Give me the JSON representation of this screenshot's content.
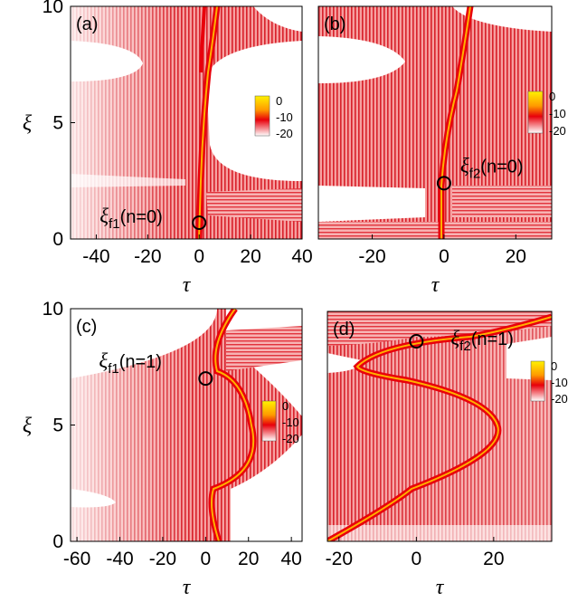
{
  "chart_data": [
    {
      "panel_label": "(a)",
      "type": "heatmap",
      "xlabel": "τ",
      "ylabel": "ξ",
      "xlim": [
        -50,
        40
      ],
      "ylim": [
        0,
        10
      ],
      "xticks": [
        -40,
        -20,
        0,
        20,
        40
      ],
      "yticks": [
        0,
        5,
        10
      ],
      "colorbar": {
        "ticks": [
          0,
          -10,
          -20
        ]
      },
      "annotation": {
        "symbol": "ξ",
        "subscript": "f1",
        "text": "(n=0)",
        "point": {
          "tau": 0,
          "xi": 0.7
        }
      }
    },
    {
      "panel_label": "(b)",
      "type": "heatmap",
      "xlabel": "τ",
      "ylabel": "",
      "xlim": [
        -35,
        30
      ],
      "ylim": [
        0,
        10
      ],
      "xticks": [
        -20,
        0,
        20
      ],
      "yticks": [],
      "colorbar": {
        "ticks": [
          0,
          -10,
          -20
        ]
      },
      "annotation": {
        "symbol": "ξ",
        "subscript": "f2",
        "text": "(n=0)",
        "point": {
          "tau": 0,
          "xi": 2.4
        }
      }
    },
    {
      "panel_label": "(c)",
      "type": "heatmap",
      "xlabel": "τ",
      "ylabel": "ξ",
      "xlim": [
        -63,
        45
      ],
      "ylim": [
        0,
        10
      ],
      "xticks": [
        -60,
        -40,
        -20,
        0,
        20,
        40
      ],
      "yticks": [
        0,
        5,
        10
      ],
      "colorbar": {
        "ticks": [
          0,
          -10,
          -20
        ]
      },
      "annotation": {
        "symbol": "ξ",
        "subscript": "f1",
        "text": "(n=1)",
        "point": {
          "tau": 0,
          "xi": 7.0
        }
      }
    },
    {
      "panel_label": "(d)",
      "type": "heatmap",
      "xlabel": "τ",
      "ylabel": "",
      "xlim": [
        -23,
        35
      ],
      "ylim": [
        0,
        10
      ],
      "xticks": [
        -20,
        0,
        20
      ],
      "yticks": [],
      "colorbar": {
        "ticks": [
          0,
          -10,
          -20
        ]
      },
      "annotation": {
        "symbol": "ξ",
        "subscript": "f2",
        "text": "(n=1)",
        "point": {
          "tau": 0,
          "xi": 8.7
        }
      }
    }
  ],
  "colors": {
    "high": "#fff200",
    "mid": "#e8000b",
    "low": "#ffffff"
  }
}
